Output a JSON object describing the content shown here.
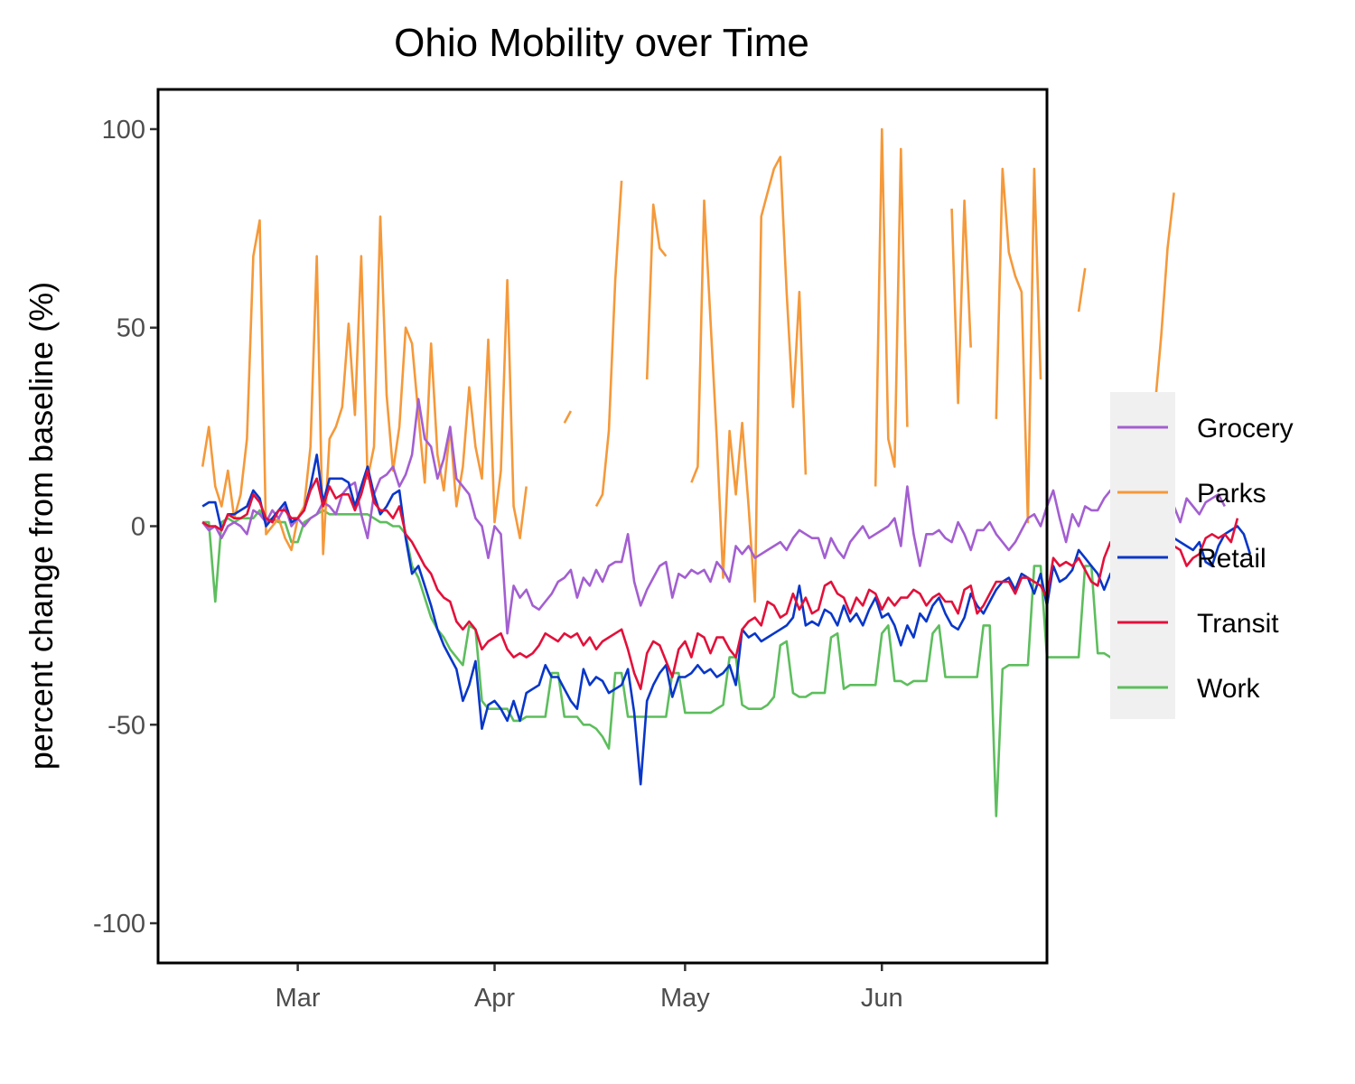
{
  "chart_data": {
    "type": "line",
    "title": "Ohio Mobility over Time",
    "xlabel": "",
    "ylabel": "percent change from baseline (%)",
    "x_start": "2020-02-15",
    "x_end": "2020-06-20",
    "xlim": [
      "2020-02-08",
      "2020-06-27"
    ],
    "ylim": [
      -110,
      110
    ],
    "y_ticks": [
      100,
      50,
      0,
      -50,
      -100
    ],
    "y_tick_labels": [
      "100",
      "50",
      "0",
      "-50",
      "-100"
    ],
    "x_ticks": [
      "2020-03-01",
      "2020-04-01",
      "2020-05-01",
      "2020-06-01"
    ],
    "x_tick_labels": [
      "Mar",
      "Apr",
      "May",
      "Jun"
    ],
    "grid": false,
    "legend_position": "right",
    "series": [
      {
        "name": "Grocery",
        "color": "#A35FD1",
        "values": [
          1,
          -1,
          0,
          -3,
          0,
          1,
          0,
          -2,
          4,
          3,
          1,
          4,
          2,
          5,
          0,
          2,
          0,
          2,
          3,
          6,
          5,
          3,
          8,
          10,
          11,
          3,
          -3,
          8,
          12,
          13,
          15,
          10,
          13,
          18,
          32,
          22,
          20,
          12,
          17,
          25,
          12,
          10,
          8,
          2,
          0,
          -8,
          0,
          -2,
          -27,
          -15,
          -18,
          -16,
          -20,
          -21,
          -19,
          -17,
          -14,
          -13,
          -11,
          -18,
          -13,
          -15,
          -11,
          -14,
          -10,
          -9,
          -9,
          -2,
          -14,
          -20,
          -16,
          -13,
          -10,
          -9,
          -18,
          -12,
          -13,
          -11,
          -12,
          -11,
          -14,
          -9,
          -11,
          -14,
          -5,
          -7,
          -5,
          -8,
          -7,
          -6,
          -5,
          -4,
          -6,
          -3,
          -1,
          -2,
          -3,
          -3,
          -8,
          -3,
          -6,
          -8,
          -4,
          -2,
          0,
          -3,
          -2,
          -1,
          0,
          2,
          -5,
          10,
          -2,
          -10,
          -2,
          -2,
          -1,
          -3,
          -4,
          1,
          -2,
          -6,
          -1,
          -1,
          1,
          -2,
          -4,
          -6,
          -4,
          -1,
          2,
          3,
          0,
          5,
          9,
          2,
          -4,
          3,
          0,
          5,
          4,
          4,
          7,
          9,
          6,
          2,
          8,
          6,
          5,
          7,
          6,
          4,
          3,
          5,
          1,
          7,
          5,
          3,
          6,
          7,
          8,
          5
        ]
      },
      {
        "name": "Parks",
        "color": "#F5993A",
        "values": [
          15,
          25,
          10,
          5,
          14,
          2,
          8,
          22,
          68,
          77,
          -2,
          0,
          2,
          -3,
          -6,
          2,
          5,
          20,
          68,
          -7,
          22,
          25,
          30,
          51,
          28,
          68,
          12,
          20,
          78,
          33,
          14,
          25,
          50,
          46,
          28,
          11,
          46,
          18,
          9,
          25,
          5,
          15,
          35,
          20,
          12,
          47,
          1,
          14,
          62,
          5,
          -3,
          10,
          null,
          null,
          null,
          null,
          null,
          26,
          29,
          null,
          null,
          null,
          5,
          8,
          24,
          62,
          87,
          null,
          null,
          null,
          37,
          81,
          70,
          68,
          null,
          null,
          null,
          11,
          15,
          82,
          52,
          22,
          -13,
          24,
          8,
          26,
          5,
          -19,
          78,
          84,
          90,
          93,
          59,
          30,
          59,
          13,
          null,
          null,
          null,
          null,
          null,
          null,
          null,
          null,
          null,
          null,
          10,
          100,
          22,
          15,
          95,
          25,
          null,
          null,
          null,
          null,
          null,
          null,
          80,
          31,
          82,
          45,
          null,
          null,
          null,
          27,
          90,
          69,
          63,
          59,
          1,
          90,
          37,
          null,
          null,
          null,
          null,
          null,
          54,
          65,
          null,
          null,
          null,
          null,
          null,
          null,
          null,
          null,
          4,
          15,
          30,
          48,
          70,
          84
        ]
      },
      {
        "name": "Retail",
        "color": "#0836C9",
        "values": [
          5,
          6,
          6,
          -1,
          3,
          3,
          4,
          5,
          9,
          7,
          0,
          2,
          4,
          6,
          1,
          2,
          4,
          10,
          18,
          6,
          12,
          12,
          12,
          11,
          5,
          10,
          15,
          8,
          3,
          5,
          8,
          9,
          -3,
          -12,
          -10,
          -15,
          -20,
          -26,
          -30,
          -33,
          -36,
          -44,
          -40,
          -34,
          -51,
          -45,
          -44,
          -46,
          -49,
          -44,
          -49,
          -42,
          -41,
          -40,
          -35,
          -38,
          -38,
          -41,
          -44,
          -46,
          -36,
          -40,
          -38,
          -39,
          -42,
          -41,
          -40,
          -36,
          -47,
          -65,
          -44,
          -40,
          -37,
          -35,
          -43,
          -38,
          -38,
          -37,
          -35,
          -37,
          -36,
          -38,
          -37,
          -35,
          -40,
          -26,
          -28,
          -27,
          -29,
          -28,
          -27,
          -26,
          -25,
          -23,
          -15,
          -25,
          -24,
          -25,
          -21,
          -22,
          -25,
          -20,
          -24,
          -22,
          -25,
          -21,
          -18,
          -23,
          -22,
          -25,
          -30,
          -25,
          -28,
          -22,
          -24,
          -20,
          -18,
          -22,
          -25,
          -26,
          -23,
          -17,
          -20,
          -22,
          -19,
          -16,
          -14,
          -13,
          -16,
          -12,
          -13,
          -17,
          -12,
          -20,
          -10,
          -14,
          -13,
          -11,
          -6,
          -8,
          -10,
          -12,
          -16,
          -12,
          -10,
          -4,
          -3,
          -4,
          -2,
          -6,
          -8,
          -10,
          -6,
          -3,
          -4,
          -5,
          -6,
          -4,
          -9,
          -10,
          -5,
          -2,
          -1,
          0,
          -2,
          -7
        ]
      },
      {
        "name": "Transit",
        "color": "#E3103A",
        "values": [
          1,
          0,
          0,
          -1,
          3,
          2,
          2,
          3,
          8,
          6,
          2,
          1,
          4,
          4,
          2,
          2,
          4,
          9,
          12,
          5,
          10,
          7,
          8,
          8,
          4,
          8,
          14,
          6,
          4,
          4,
          2,
          5,
          -2,
          -4,
          -7,
          -10,
          -12,
          -16,
          -18,
          -19,
          -24,
          -26,
          -24,
          -26,
          -31,
          -29,
          -28,
          -27,
          -31,
          -33,
          -32,
          -33,
          -32,
          -30,
          -27,
          -28,
          -29,
          -27,
          -28,
          -27,
          -30,
          -28,
          -31,
          -29,
          -28,
          -27,
          -26,
          -31,
          -37,
          -41,
          -32,
          -29,
          -30,
          -34,
          -38,
          -31,
          -29,
          -33,
          -27,
          -28,
          -32,
          -28,
          -28,
          -31,
          -33,
          -26,
          -24,
          -23,
          -25,
          -19,
          -20,
          -23,
          -22,
          -17,
          -21,
          -18,
          -22,
          -21,
          -15,
          -14,
          -17,
          -18,
          -22,
          -18,
          -20,
          -16,
          -17,
          -21,
          -18,
          -20,
          -18,
          -18,
          -16,
          -17,
          -20,
          -18,
          -17,
          -19,
          -19,
          -22,
          -16,
          -15,
          -22,
          -20,
          -17,
          -14,
          -14,
          -14,
          -17,
          -13,
          -13,
          -14,
          -15,
          -18,
          -8,
          -10,
          -9,
          -10,
          -8,
          -11,
          -14,
          -15,
          -8,
          -4,
          -5,
          -9,
          -7,
          -4,
          5,
          -3,
          -5,
          -5,
          -9,
          -5,
          -6,
          -10,
          -8,
          -7,
          -3,
          -2,
          -3,
          -2,
          -4,
          2
        ]
      },
      {
        "name": "Work",
        "color": "#5DBE5D",
        "values": [
          1,
          1,
          -19,
          1,
          2,
          1,
          2,
          2,
          2,
          4,
          1,
          2,
          1,
          1,
          -4,
          -4,
          1,
          2,
          3,
          4,
          3,
          3,
          3,
          3,
          3,
          3,
          3,
          2,
          1,
          1,
          0,
          0,
          -2,
          -10,
          -13,
          -18,
          -23,
          -26,
          -28,
          -31,
          -33,
          -35,
          -25,
          -26,
          -44,
          -46,
          -46,
          -46,
          -46,
          -49,
          -49,
          -48,
          -48,
          -48,
          -48,
          -37,
          -37,
          -48,
          -48,
          -48,
          -50,
          -50,
          -51,
          -53,
          -56,
          -37,
          -37,
          -48,
          -48,
          -48,
          -48,
          -48,
          -48,
          -48,
          -37,
          -37,
          -47,
          -47,
          -47,
          -47,
          -47,
          -46,
          -45,
          -33,
          -33,
          -45,
          -46,
          -46,
          -46,
          -45,
          -43,
          -30,
          -29,
          -42,
          -43,
          -43,
          -42,
          -42,
          -42,
          -28,
          -27,
          -41,
          -40,
          -40,
          -40,
          -40,
          -40,
          -27,
          -25,
          -39,
          -39,
          -40,
          -39,
          -39,
          -39,
          -27,
          -25,
          -38,
          -38,
          -38,
          -38,
          -38,
          -38,
          -25,
          -25,
          -73,
          -36,
          -35,
          -35,
          -35,
          -35,
          -10,
          -10,
          -33,
          -33,
          -33,
          -33,
          -33,
          -33,
          -10,
          -10,
          -32,
          -32,
          -33,
          -32,
          -32,
          -32,
          -10,
          -10,
          -32,
          -31,
          -32,
          -33,
          -33
        ]
      }
    ]
  }
}
